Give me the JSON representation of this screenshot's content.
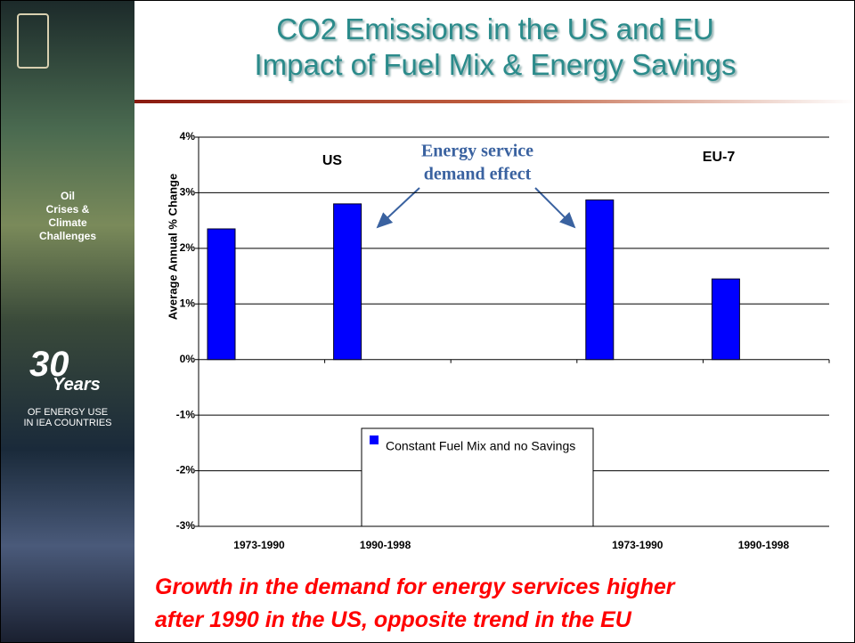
{
  "slide": {
    "title": [
      "CO2 Emissions in the US and EU",
      "Impact of Fuel Mix & Energy Savings"
    ],
    "sidebar": {
      "theme": [
        "Oil",
        "Crises &",
        "Climate",
        "Challenges"
      ],
      "number": "30",
      "years": "Years",
      "subtitle": [
        "OF ENERGY USE",
        "IN IEA COUNTRIES"
      ]
    },
    "caption": [
      "Growth in the demand for energy services higher",
      "after 1990 in the US, opposite trend in the EU"
    ]
  },
  "chart_data": {
    "type": "bar",
    "y_label": "Average Annual % Change",
    "categories": [
      "1973-1990",
      "1990-1998",
      null,
      "1973-1990",
      "1990-1998"
    ],
    "series": [
      {
        "name": "Constant Fuel Mix and no Savings",
        "color": "#0000ff",
        "values": [
          2.35,
          2.8,
          null,
          2.87,
          1.45
        ]
      }
    ],
    "ylim": [
      -3,
      4
    ],
    "yticks": [
      {
        "value": -3,
        "label": "-3%"
      },
      {
        "value": -2,
        "label": "-2%"
      },
      {
        "value": -1,
        "label": "-1%"
      },
      {
        "value": 0,
        "label": "0%"
      },
      {
        "value": 1,
        "label": "1%"
      },
      {
        "value": 2,
        "label": "2%"
      },
      {
        "value": 3,
        "label": "3%"
      },
      {
        "value": 4,
        "label": "4%"
      }
    ],
    "grid": true,
    "annotations": {
      "us": "US",
      "eu": "EU-7",
      "effect": [
        "Energy service",
        "demand effect"
      ]
    }
  }
}
